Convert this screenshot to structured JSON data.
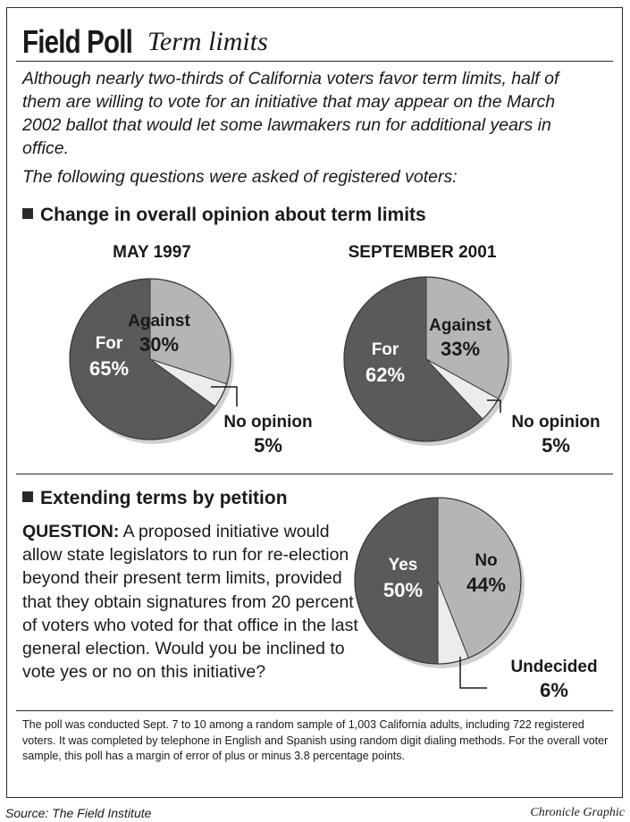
{
  "header": {
    "title": "Field Poll",
    "subtitle": "Term limits"
  },
  "intro": "Although nearly two-thirds of California voters favor term limits, half of them are willing to vote for an initiative that may appear on the March 2002 ballot that would let some lawmakers run for additional years in office.",
  "asked": "The following questions were asked of registered voters:",
  "section1_title": "Change in overall opinion about term limits",
  "section2_title": "Extending terms by petition",
  "question": {
    "label": "QUESTION:",
    "text": " A proposed initiative would allow state legislators to run for re-election beyond their present term limits, provided that they obtain signatures from 20 percent of voters who voted for that office in the last general election. Would you be inclined to vote yes or no on this initiative?"
  },
  "footnote": "The poll was conducted Sept. 7 to 10 among a random sample of 1,003 California adults, including 722 registered voters. It was completed by telephone in English and Spanish using random digit dialing methods. For the overall voter sample, this poll has a margin of error of plus or minus 3.8 percentage points.",
  "source": "Source: The Field Institute",
  "credit": "Chronicle Graphic",
  "colors": {
    "dark": "#5a5a5a",
    "medium": "#b5b5b5",
    "light": "#ececec",
    "text_on_dark": "#ffffff",
    "text_on_light": "#1a1a1a"
  },
  "chart_data": [
    {
      "type": "pie",
      "title": "MAY 1997",
      "slices": [
        {
          "label": "Against",
          "value": 30,
          "display": "30%",
          "color": "medium"
        },
        {
          "label": "No opinion",
          "value": 5,
          "display": "5%",
          "color": "light"
        },
        {
          "label": "For",
          "value": 65,
          "display": "65%",
          "color": "dark"
        }
      ]
    },
    {
      "type": "pie",
      "title": "SEPTEMBER 2001",
      "slices": [
        {
          "label": "Against",
          "value": 33,
          "display": "33%",
          "color": "medium"
        },
        {
          "label": "No opinion",
          "value": 5,
          "display": "5%",
          "color": "light"
        },
        {
          "label": "For",
          "value": 62,
          "display": "62%",
          "color": "dark"
        }
      ]
    },
    {
      "type": "pie",
      "title": "",
      "slices": [
        {
          "label": "No",
          "value": 44,
          "display": "44%",
          "color": "medium"
        },
        {
          "label": "Undecided",
          "value": 6,
          "display": "6%",
          "color": "light"
        },
        {
          "label": "Yes",
          "value": 50,
          "display": "50%",
          "color": "dark"
        }
      ]
    }
  ]
}
